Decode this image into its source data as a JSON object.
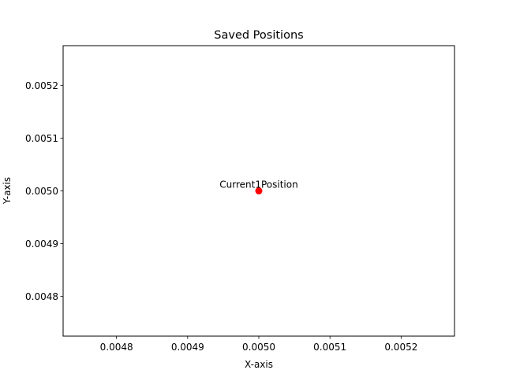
{
  "chart_data": {
    "type": "scatter",
    "title": "Saved Positions",
    "xlabel": "X-axis",
    "ylabel": "Y-axis",
    "xlim": [
      0.004725,
      0.005275
    ],
    "ylim": [
      0.004725,
      0.005275
    ],
    "xticks": [
      "0.0048",
      "0.0049",
      "0.0050",
      "0.0051",
      "0.0052"
    ],
    "yticks": [
      "0.0048",
      "0.0049",
      "0.0050",
      "0.0051",
      "0.0052"
    ],
    "grid": false,
    "series": [
      {
        "points": [
          {
            "x": 0.005,
            "y": 0.005,
            "label": "Current1Position"
          }
        ],
        "color": "#ff0000"
      }
    ],
    "annotations": [
      "Current1Position"
    ]
  }
}
